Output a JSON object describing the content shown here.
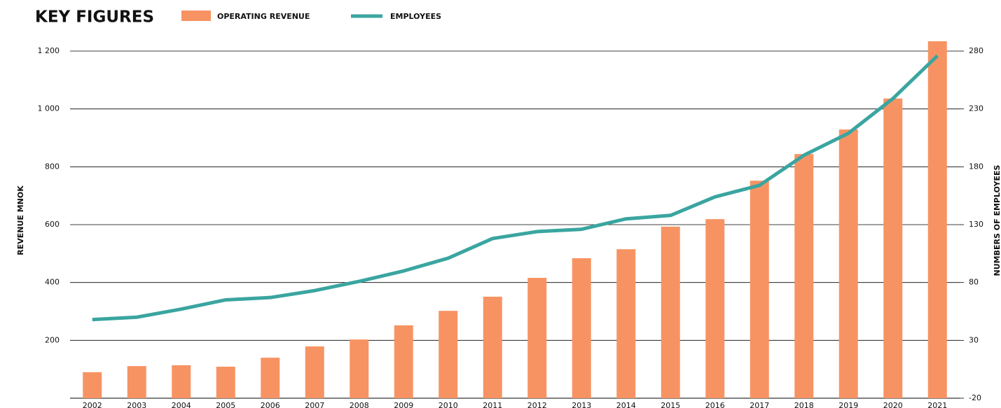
{
  "chart_data": {
    "type": "bar_line",
    "title": "KEY FIGURES",
    "categories": [
      "2002",
      "2003",
      "2004",
      "2005",
      "2006",
      "2007",
      "2008",
      "2009",
      "2010",
      "2011",
      "2012",
      "2013",
      "2014",
      "2015",
      "2016",
      "2017",
      "2018",
      "2019",
      "2020",
      "2021"
    ],
    "series": [
      {
        "name": "OPERATING REVENUE",
        "type": "bar",
        "color": "#f79363",
        "values": [
          90,
          111,
          114,
          109,
          140,
          179,
          203,
          252,
          302,
          351,
          416,
          484,
          515,
          593,
          619,
          752,
          844,
          929,
          1036,
          1234
        ]
      },
      {
        "name": "EMPLOYEES",
        "type": "line",
        "axis": "y2",
        "color": "#3aa5a0",
        "values": [
          48,
          50,
          57,
          65,
          67,
          73,
          81,
          90,
          101,
          118,
          124,
          126,
          135,
          138,
          154,
          164,
          190,
          209,
          239,
          276
        ]
      }
    ],
    "ylabel": "REVENUE MNOK",
    "y2label": "NUMBERS OF EMPLOYEES",
    "ylim": [
      0,
      1200
    ],
    "yticks": [
      200,
      400,
      600,
      800,
      {
        "value": 1000,
        "label": "1 000"
      },
      {
        "value": 1200,
        "label": "1 200"
      }
    ],
    "y2lim": [
      -20,
      280
    ],
    "y2ticks": [
      -20,
      30,
      80,
      130,
      180,
      230,
      280
    ],
    "grid": true
  }
}
